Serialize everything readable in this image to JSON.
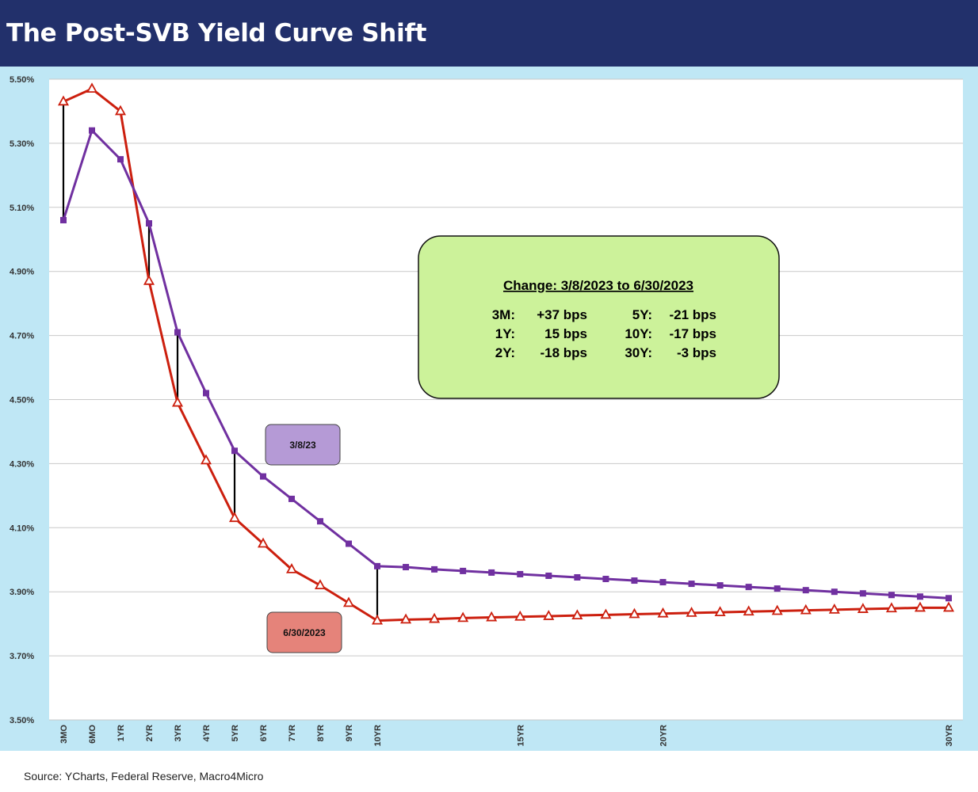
{
  "header": {
    "title": "The Post-SVB Yield Curve Shift"
  },
  "source": "Source: YCharts, Federal Reserve, Macro4Micro",
  "colors": {
    "title_bg": "#22306b",
    "frame_bg": "#bfe7f5",
    "series_3_8_23": "#7030a0",
    "series_6_30_2023": "#cc1f0e",
    "change_box_fill": "#ccf29a",
    "label_3_8_23_fill": "#b59ad6",
    "label_6_30_2023_fill": "#e5837a",
    "gap_line": "#000000"
  },
  "change_box": {
    "heading": "Change: 3/8/2023 to 6/30/2023",
    "lines": [
      {
        "left_label": "3M:",
        "left_value": "+37 bps",
        "right_label": "5Y:",
        "right_value": "-21 bps"
      },
      {
        "left_label": "1Y:",
        "left_value": "15 bps",
        "right_label": "10Y:",
        "right_value": "-17 bps"
      },
      {
        "left_label": "2Y:",
        "left_value": "-18 bps",
        "right_label": "30Y:",
        "right_value": "-3 bps"
      }
    ]
  },
  "chart_data": {
    "type": "line",
    "title": "The Post-SVB Yield Curve Shift",
    "xlabel": "",
    "ylabel": "",
    "ylim": [
      3.5,
      5.5
    ],
    "y_ticks": [
      "3.50%",
      "3.70%",
      "3.90%",
      "4.10%",
      "4.30%",
      "4.50%",
      "4.70%",
      "4.90%",
      "5.10%",
      "5.30%",
      "5.50%"
    ],
    "y_tick_values": [
      3.5,
      3.7,
      3.9,
      4.1,
      4.3,
      4.5,
      4.7,
      4.9,
      5.1,
      5.3,
      5.5
    ],
    "grid": true,
    "x_labels": [
      "3MO",
      "6MO",
      "1YR",
      "2YR",
      "3YR",
      "4YR",
      "5YR",
      "6YR",
      "7YR",
      "8YR",
      "9YR",
      "10YR",
      "15YR",
      "20YR",
      "30YR"
    ],
    "x_label_maturities": [
      0.25,
      0.5,
      1,
      2,
      3,
      4,
      5,
      6,
      7,
      8,
      9,
      10,
      15,
      20,
      30
    ],
    "x": [
      0.25,
      0.5,
      1,
      2,
      3,
      4,
      5,
      6,
      7,
      8,
      9,
      10,
      11,
      12,
      13,
      14,
      15,
      16,
      17,
      18,
      19,
      20,
      21,
      22,
      23,
      24,
      25,
      26,
      27,
      28,
      29,
      30
    ],
    "series": [
      {
        "name": "3/8/23",
        "marker": "square",
        "values": [
          5.06,
          5.34,
          5.25,
          5.05,
          4.71,
          4.52,
          4.34,
          4.26,
          4.19,
          4.12,
          4.05,
          3.98,
          3.977,
          3.97,
          3.965,
          3.96,
          3.955,
          3.95,
          3.945,
          3.94,
          3.935,
          3.93,
          3.925,
          3.92,
          3.915,
          3.91,
          3.905,
          3.9,
          3.895,
          3.89,
          3.885,
          3.88
        ]
      },
      {
        "name": "6/30/2023",
        "marker": "triangle",
        "values": [
          5.43,
          5.47,
          5.4,
          4.87,
          4.49,
          4.31,
          4.13,
          4.05,
          3.97,
          3.92,
          3.865,
          3.81,
          3.813,
          3.815,
          3.818,
          3.82,
          3.822,
          3.824,
          3.826,
          3.828,
          3.83,
          3.832,
          3.834,
          3.836,
          3.838,
          3.84,
          3.842,
          3.844,
          3.846,
          3.848,
          3.85,
          3.85
        ]
      }
    ],
    "gap_lines_at": [
      0.25,
      2,
      3,
      5,
      10
    ],
    "series_labels": [
      "3/8/23",
      "6/30/2023"
    ]
  }
}
